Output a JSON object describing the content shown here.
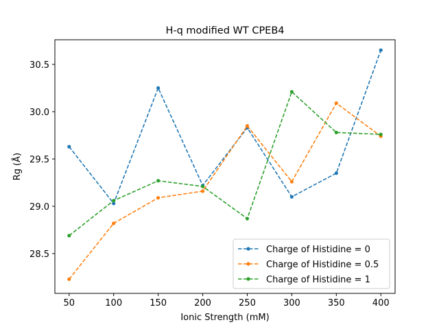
{
  "chart_data": {
    "type": "line",
    "title": "H-q modified WT CPEB4",
    "xlabel": "Ionic Strength (mM)",
    "ylabel": "Rg (Å)",
    "x": [
      50,
      100,
      150,
      200,
      250,
      300,
      350,
      400
    ],
    "xlim": [
      34,
      416
    ],
    "ylim": [
      28.08,
      30.76
    ],
    "xticks": [
      50,
      100,
      150,
      200,
      250,
      300,
      350,
      400
    ],
    "yticks": [
      28.5,
      29.0,
      29.5,
      30.0,
      30.5
    ],
    "ytick_labels": [
      "28.5",
      "29.0",
      "29.5",
      "30.0",
      "30.5"
    ],
    "grid": false,
    "legend_position": "lower-right",
    "series": [
      {
        "name": "Charge of Histidine = 0",
        "color": "#1f77b4",
        "values": [
          29.63,
          29.03,
          30.25,
          29.22,
          29.83,
          29.1,
          29.35,
          30.65
        ]
      },
      {
        "name": "Charge of Histidine = 0.5",
        "color": "#ff7f0e",
        "values": [
          28.23,
          28.82,
          29.09,
          29.16,
          29.85,
          29.26,
          30.09,
          29.74
        ]
      },
      {
        "name": "Charge of Histidine = 1",
        "color": "#2ca02c",
        "values": [
          28.69,
          29.06,
          29.27,
          29.21,
          28.87,
          30.21,
          29.78,
          29.76
        ]
      }
    ]
  }
}
